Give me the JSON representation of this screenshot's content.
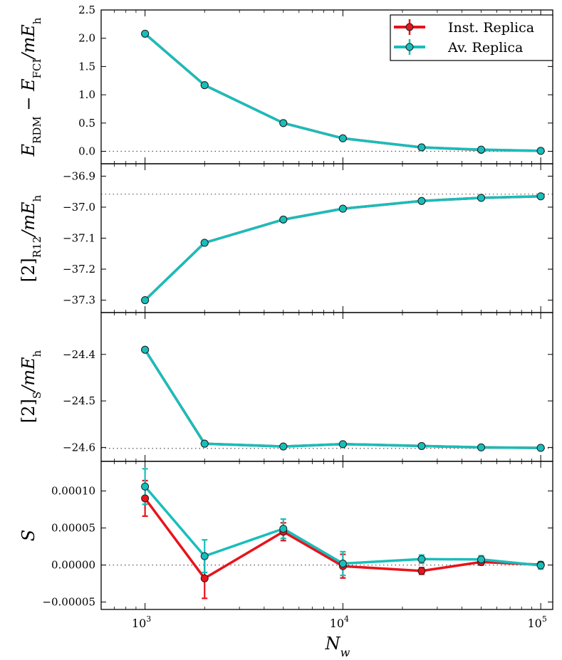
{
  "chart_data": {
    "type": "line",
    "x_scale": "log",
    "xlim": [
      600,
      115000
    ],
    "xlabel": "N_w",
    "xticks": [
      {
        "value": 1000,
        "base": "10",
        "exp": "3"
      },
      {
        "value": 10000,
        "base": "10",
        "exp": "4"
      },
      {
        "value": 100000,
        "base": "10",
        "exp": "5"
      }
    ],
    "x": [
      1000,
      2000,
      5000,
      10000,
      25000,
      50000,
      100000
    ],
    "legend": {
      "position": "top-right",
      "entries": [
        {
          "label": "Inst. Replica",
          "color": "#e8131b"
        },
        {
          "label": "Av. Replica",
          "color": "#17bebb"
        }
      ]
    },
    "colors": {
      "inst": "#e8131b",
      "av": "#17bebb",
      "marker_edge": "#222222",
      "ref_line": "#555555"
    },
    "panels": [
      {
        "id": "rdm-energy",
        "ylabel": "E_RDM − E_FCI / mE_h",
        "ylim": [
          -0.22,
          2.5
        ],
        "yticks": [
          0.0,
          0.5,
          1.0,
          1.5,
          2.0,
          2.5
        ],
        "ytick_labels": [
          "0.0",
          "0.5",
          "1.0",
          "1.5",
          "2.0",
          "2.5"
        ],
        "reference": 0.0,
        "series": [
          {
            "name": "Inst. Replica",
            "values": [
              2.08,
              1.17,
              0.5,
              0.23,
              0.07,
              0.025,
              0.008
            ],
            "errors": [
              0,
              0,
              0,
              0,
              0,
              0,
              0
            ]
          },
          {
            "name": "Av. Replica",
            "values": [
              2.08,
              1.17,
              0.5,
              0.23,
              0.07,
              0.03,
              0.008
            ],
            "errors": [
              0,
              0,
              0,
              0,
              0,
              0,
              0
            ]
          }
        ]
      },
      {
        "id": "r12-correction",
        "ylabel": "[2]_R12 / mE_h",
        "ylim": [
          -37.34,
          -36.86
        ],
        "yticks": [
          -37.3,
          -37.2,
          -37.1,
          -37.0,
          -36.9
        ],
        "ytick_labels": [
          "−37.3",
          "−37.2",
          "−37.1",
          "−37.0",
          "−36.9"
        ],
        "reference": -36.958,
        "series": [
          {
            "name": "Inst. Replica",
            "values": [
              -37.3,
              -37.115,
              -37.04,
              -37.005,
              -36.98,
              -36.97,
              -36.965
            ],
            "errors": [
              0,
              0,
              0,
              0,
              0,
              0,
              0
            ]
          },
          {
            "name": "Av. Replica",
            "values": [
              -37.3,
              -37.115,
              -37.04,
              -37.005,
              -36.98,
              -36.97,
              -36.965
            ],
            "errors": [
              0,
              0,
              0,
              0,
              0,
              0,
              0
            ]
          }
        ]
      },
      {
        "id": "s-correction",
        "ylabel": "[2]_S / mE_h",
        "ylim": [
          -24.63,
          -24.31
        ],
        "yticks": [
          -24.6,
          -24.5,
          -24.4
        ],
        "ytick_labels": [
          "−24.6",
          "−24.5",
          "−24.4"
        ],
        "reference": -24.602,
        "series": [
          {
            "name": "Inst. Replica",
            "values": [
              -24.39,
              -24.592,
              -24.598,
              -24.593,
              -24.597,
              -24.6,
              -24.601
            ],
            "errors": [
              0,
              0,
              0,
              0,
              0,
              0,
              0
            ]
          },
          {
            "name": "Av. Replica",
            "values": [
              -24.39,
              -24.592,
              -24.598,
              -24.593,
              -24.597,
              -24.6,
              -24.601
            ],
            "errors": [
              0,
              0,
              0,
              0,
              0,
              0,
              0
            ]
          }
        ]
      },
      {
        "id": "shift",
        "ylabel": "S",
        "ylim": [
          -6e-05,
          0.00014
        ],
        "yticks": [
          -5e-05,
          0.0,
          5e-05,
          0.0001
        ],
        "ytick_labels": [
          "−0.00005",
          "0.00000",
          "0.00005",
          "0.00010"
        ],
        "reference": 0.0,
        "series": [
          {
            "name": "Inst. Replica",
            "values": [
              9e-05,
              -1.8e-05,
              4.5e-05,
              -1.5e-06,
              -8e-06,
              4e-06,
              5e-07
            ],
            "errors": [
              2.4e-05,
              2.7e-05,
              1.2e-05,
              1.6e-05,
              4.5e-06,
              4e-06,
              3.5e-06
            ]
          },
          {
            "name": "Av. Replica",
            "values": [
              0.000106,
              1.2e-05,
              4.9e-05,
              2e-06,
              8e-06,
              7.5e-06,
              -5e-07
            ],
            "errors": [
              2.4e-05,
              2.2e-05,
              1.3e-05,
              1.6e-05,
              5.5e-06,
              5e-06,
              5e-06
            ]
          }
        ]
      }
    ]
  }
}
